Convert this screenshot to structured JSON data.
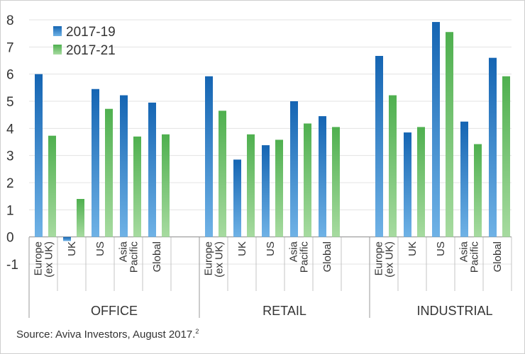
{
  "chart_data": {
    "type": "bar",
    "groups": [
      {
        "name": "OFFICE",
        "categories": [
          "Europe\n(ex UK)",
          "UK",
          "US",
          "Asia\nPacific",
          "Global"
        ]
      },
      {
        "name": "RETAIL",
        "categories": [
          "Europe\n(ex UK)",
          "UK",
          "US",
          "Asia\nPacific",
          "Global"
        ]
      },
      {
        "name": "INDUSTRIAL",
        "categories": [
          "Europe\n(ex UK)",
          "UK",
          "US",
          "Asia\nPacific",
          "Global"
        ]
      }
    ],
    "series": [
      {
        "name": "2017-19",
        "color": "#1a73c0",
        "values": [
          6.0,
          -0.15,
          5.45,
          5.22,
          4.95,
          5.92,
          2.85,
          3.38,
          5.0,
          4.45,
          6.67,
          3.85,
          7.92,
          4.25,
          6.6
        ]
      },
      {
        "name": "2017-21",
        "color": "#5cb85c",
        "values": [
          3.73,
          1.4,
          4.72,
          3.7,
          3.78,
          4.65,
          3.78,
          3.58,
          4.18,
          4.05,
          5.22,
          4.05,
          7.55,
          3.42,
          5.92
        ]
      }
    ],
    "ylim": [
      -1,
      8
    ],
    "yticks": [
      -1,
      0,
      1,
      2,
      3,
      4,
      5,
      6,
      7,
      8
    ],
    "grid": true,
    "legend": "top-left"
  },
  "source": {
    "text": "Source: Aviva Investors, August 2017.",
    "note": "2"
  }
}
